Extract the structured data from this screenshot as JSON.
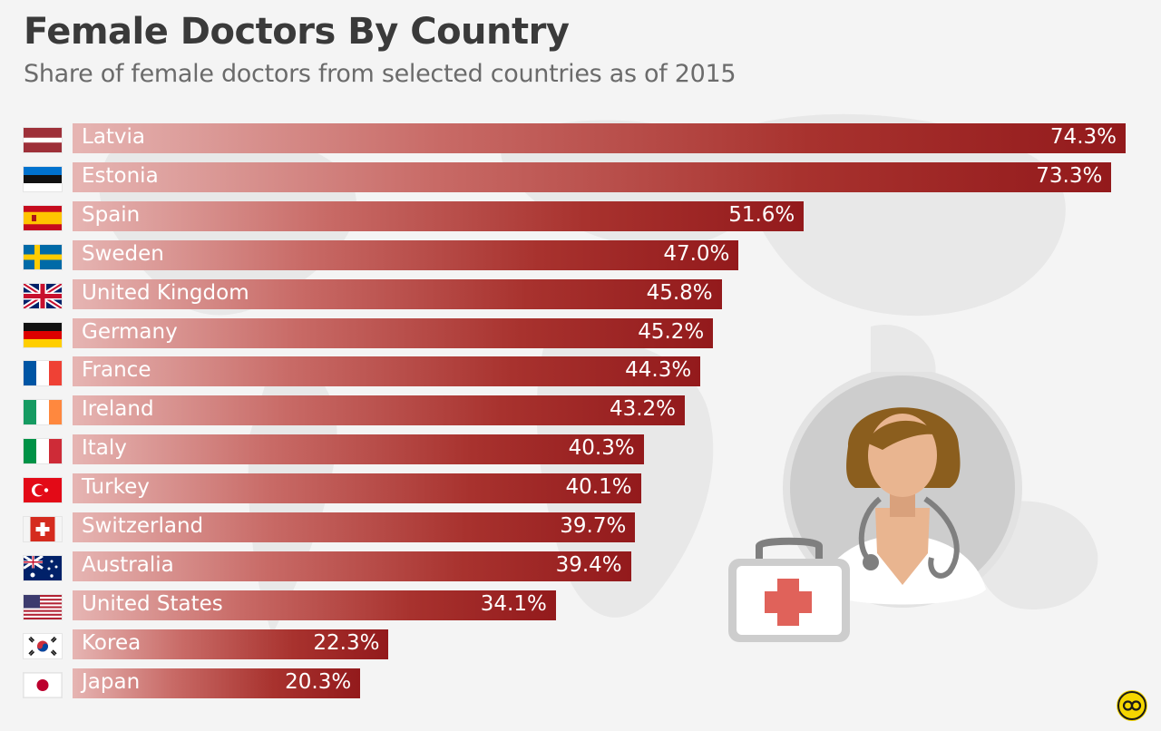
{
  "title": "Female Doctors By Country",
  "subtitle": "Share of female doctors from selected countries as of 2015",
  "colors": {
    "bar_start": "#e6b5b3",
    "bar_end": "#931a1c",
    "title": "#3a3a3a",
    "subtitle": "#6b6b6b",
    "background": "#f4f4f4",
    "logo": "#f5d600"
  },
  "chart_data": {
    "type": "bar",
    "orientation": "horizontal",
    "title": "Female Doctors By Country",
    "subtitle": "Share of female doctors from selected countries as of 2015",
    "unit": "%",
    "xlim": [
      0,
      74.3
    ],
    "grid": false,
    "categories": [
      "Latvia",
      "Estonia",
      "Spain",
      "Sweden",
      "United Kingdom",
      "Germany",
      "France",
      "Ireland",
      "Italy",
      "Turkey",
      "Switzerland",
      "Australia",
      "United States",
      "Korea",
      "Japan"
    ],
    "values": [
      74.3,
      73.3,
      51.6,
      47.0,
      45.8,
      45.2,
      44.3,
      43.2,
      40.3,
      40.1,
      39.7,
      39.4,
      34.1,
      22.3,
      20.3
    ],
    "value_labels": [
      "74.3%",
      "73.3%",
      "51.6%",
      "47.0%",
      "45.8%",
      "45.2%",
      "44.3%",
      "43.2%",
      "40.3%",
      "40.1%",
      "39.7%",
      "39.4%",
      "34.1%",
      "22.3%",
      "20.3%"
    ],
    "flags": [
      "latvia-flag-icon",
      "estonia-flag-icon",
      "spain-flag-icon",
      "sweden-flag-icon",
      "uk-flag-icon",
      "germany-flag-icon",
      "france-flag-icon",
      "ireland-flag-icon",
      "italy-flag-icon",
      "turkey-flag-icon",
      "switzerland-flag-icon",
      "australia-flag-icon",
      "usa-flag-icon",
      "korea-flag-icon",
      "japan-flag-icon"
    ]
  },
  "illustration": {
    "icon": "female-doctor-icon",
    "secondary_icon": "medical-kit-icon",
    "background_icon": "world-map-icon"
  },
  "logo": {
    "icon": "statista-logo-icon"
  }
}
